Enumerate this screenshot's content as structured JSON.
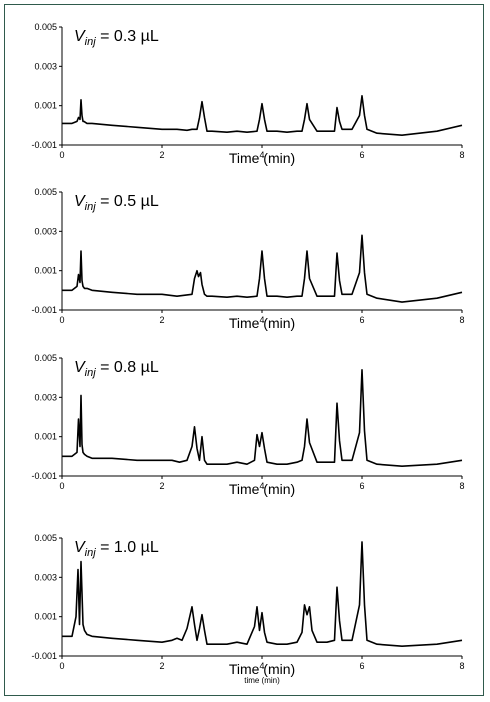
{
  "chart_data": [
    {
      "type": "line",
      "title": "V_inj = 0.3 µL",
      "title_parts": {
        "symbol": "V",
        "subscript": "inj",
        "value": " = 0.3 µL"
      },
      "xlabel": "Time (min)",
      "xlim": [
        0,
        8
      ],
      "ylim": [
        -0.001,
        0.005
      ],
      "xticks": [
        "0",
        "2",
        "4",
        "6",
        "8"
      ],
      "yticks": [
        "-0.001",
        "0.001",
        "0.003",
        "0.005"
      ],
      "series": [
        {
          "color": "#000000",
          "x": [
            0,
            0.2,
            0.3,
            0.33,
            0.36,
            0.38,
            0.4,
            0.42,
            0.44,
            0.47,
            0.5,
            0.6,
            1.0,
            1.5,
            2.0,
            2.3,
            2.5,
            2.6,
            2.7,
            2.75,
            2.8,
            2.85,
            2.9,
            3.0,
            3.3,
            3.5,
            3.7,
            3.9,
            3.95,
            4.0,
            4.05,
            4.1,
            4.3,
            4.5,
            4.7,
            4.8,
            4.85,
            4.9,
            4.95,
            5.1,
            5.3,
            5.45,
            5.5,
            5.55,
            5.6,
            5.8,
            5.95,
            6.0,
            6.05,
            6.1,
            6.3,
            6.8,
            7.5,
            8.0
          ],
          "y": [
            0.0001,
            0.0001,
            0.0002,
            0.0004,
            0.0003,
            0.0013,
            0.0005,
            0.0002,
            0.0002,
            0.00015,
            0.0001,
            0.0001,
            0.0,
            -0.0001,
            -0.0002,
            -0.0002,
            -0.00025,
            -0.0002,
            -0.0002,
            0.0004,
            0.0012,
            0.0004,
            -0.0003,
            -0.0003,
            -0.00035,
            -0.0003,
            -0.00035,
            -0.0003,
            0.0003,
            0.0011,
            0.0003,
            -0.0003,
            -0.0003,
            -0.00035,
            -0.0003,
            -0.0003,
            0.0003,
            0.0011,
            0.0003,
            -0.0003,
            -0.0003,
            -0.0003,
            0.0009,
            0.0002,
            -0.0002,
            -0.0002,
            0.0005,
            0.0015,
            0.0005,
            -0.0002,
            -0.0004,
            -0.0005,
            -0.0003,
            0.0
          ]
        }
      ]
    },
    {
      "type": "line",
      "title": "V_inj = 0.5 µL",
      "title_parts": {
        "symbol": "V",
        "subscript": "inj",
        "value": " = 0.5 µL"
      },
      "xlabel": "Time (min)",
      "xlim": [
        0,
        8
      ],
      "ylim": [
        -0.001,
        0.005
      ],
      "xticks": [
        "0",
        "2",
        "4",
        "6",
        "8"
      ],
      "yticks": [
        "-0.001",
        "0.001",
        "0.003",
        "0.005"
      ],
      "series": [
        {
          "color": "#000000",
          "x": [
            0,
            0.2,
            0.3,
            0.33,
            0.36,
            0.38,
            0.4,
            0.42,
            0.45,
            0.5,
            0.6,
            1.0,
            1.5,
            2.0,
            2.3,
            2.6,
            2.65,
            2.7,
            2.73,
            2.77,
            2.8,
            2.85,
            2.9,
            3.0,
            3.3,
            3.5,
            3.7,
            3.9,
            3.95,
            4.0,
            4.05,
            4.1,
            4.3,
            4.5,
            4.7,
            4.8,
            4.85,
            4.9,
            4.95,
            5.1,
            5.3,
            5.45,
            5.5,
            5.55,
            5.6,
            5.8,
            5.95,
            6.0,
            6.05,
            6.1,
            6.3,
            6.8,
            7.5,
            8.0
          ],
          "y": [
            0.0,
            0.0,
            0.0002,
            0.0008,
            0.0004,
            0.002,
            0.0005,
            0.0002,
            0.0001,
            0.0001,
            0.0,
            -0.0001,
            -0.0002,
            -0.0002,
            -0.0003,
            -0.0002,
            0.0006,
            0.001,
            0.0007,
            0.0009,
            0.0003,
            -0.0002,
            -0.0003,
            -0.0003,
            -0.00035,
            -0.0003,
            -0.00035,
            -0.0003,
            0.0006,
            0.002,
            0.0006,
            -0.0003,
            -0.0003,
            -0.00035,
            -0.0003,
            -0.0003,
            0.0006,
            0.002,
            0.0006,
            -0.0003,
            -0.0003,
            -0.0003,
            0.0019,
            0.0005,
            -0.0002,
            -0.0002,
            0.0009,
            0.0028,
            0.0009,
            -0.0002,
            -0.0004,
            -0.0006,
            -0.0004,
            -0.0001
          ]
        }
      ]
    },
    {
      "type": "line",
      "title": "V_inj = 0.8 µL",
      "title_parts": {
        "symbol": "V",
        "subscript": "inj",
        "value": " = 0.8 µL"
      },
      "xlabel": "Time (min)",
      "xlim": [
        0,
        8
      ],
      "ylim": [
        -0.001,
        0.005
      ],
      "xticks": [
        "0",
        "2",
        "4",
        "6",
        "8"
      ],
      "yticks": [
        "-0.001",
        "0.001",
        "0.003",
        "0.005"
      ],
      "series": [
        {
          "color": "#000000",
          "x": [
            0,
            0.2,
            0.3,
            0.33,
            0.36,
            0.38,
            0.4,
            0.42,
            0.45,
            0.5,
            0.6,
            1.0,
            1.5,
            2.0,
            2.2,
            2.35,
            2.5,
            2.6,
            2.65,
            2.7,
            2.75,
            2.8,
            2.85,
            2.9,
            3.0,
            3.3,
            3.5,
            3.7,
            3.85,
            3.9,
            3.95,
            4.0,
            4.05,
            4.1,
            4.3,
            4.5,
            4.7,
            4.8,
            4.85,
            4.9,
            4.95,
            5.1,
            5.3,
            5.45,
            5.5,
            5.55,
            5.6,
            5.8,
            5.95,
            6.0,
            6.05,
            6.1,
            6.3,
            6.8,
            7.5,
            8.0
          ],
          "y": [
            0.0,
            0.0,
            0.0002,
            0.0019,
            0.0005,
            0.0031,
            0.0006,
            0.0002,
            0.0001,
            0.0,
            -0.0001,
            -0.0001,
            -0.0002,
            -0.0002,
            -0.0002,
            -0.0003,
            -0.0002,
            0.0005,
            0.0015,
            0.0004,
            -0.0002,
            0.001,
            -0.0002,
            -0.0004,
            -0.0004,
            -0.0004,
            -0.0003,
            -0.0004,
            -0.0002,
            0.0011,
            0.0005,
            0.0012,
            0.0004,
            -0.0003,
            -0.0004,
            -0.0004,
            -0.0003,
            -0.0002,
            0.0005,
            0.0019,
            0.0007,
            -0.0003,
            -0.0003,
            -0.0003,
            0.0027,
            0.0008,
            -0.0002,
            -0.0002,
            0.0012,
            0.0044,
            0.0013,
            -0.0002,
            -0.0004,
            -0.0005,
            -0.0004,
            -0.0002
          ]
        }
      ]
    },
    {
      "type": "line",
      "title": "V_inj = 1.0 µL",
      "title_parts": {
        "symbol": "V",
        "subscript": "inj",
        "value": " = 1.0 µL"
      },
      "xlabel": "Time (min)",
      "xlim": [
        0,
        8
      ],
      "ylim": [
        -0.001,
        0.005
      ],
      "xticks": [
        "0",
        "2",
        "4",
        "6",
        "8"
      ],
      "yticks": [
        "-0.001",
        "0.001",
        "0.003",
        "0.005"
      ],
      "footer_label": "time (min)",
      "series": [
        {
          "color": "#000000",
          "x": [
            0,
            0.2,
            0.28,
            0.32,
            0.35,
            0.38,
            0.42,
            0.45,
            0.5,
            0.6,
            1.0,
            1.5,
            2.0,
            2.2,
            2.3,
            2.4,
            2.5,
            2.6,
            2.65,
            2.7,
            2.75,
            2.8,
            2.85,
            2.9,
            3.0,
            3.3,
            3.5,
            3.7,
            3.85,
            3.9,
            3.95,
            4.0,
            4.05,
            4.1,
            4.3,
            4.5,
            4.7,
            4.8,
            4.85,
            4.9,
            4.95,
            5.0,
            5.1,
            5.3,
            5.45,
            5.5,
            5.55,
            5.6,
            5.8,
            5.95,
            6.0,
            6.05,
            6.1,
            6.3,
            6.8,
            7.5,
            8.0
          ],
          "y": [
            0.0,
            0.0,
            0.001,
            0.0034,
            0.0006,
            0.0038,
            0.0006,
            0.0003,
            0.0001,
            0.0,
            -0.0001,
            -0.0002,
            -0.0003,
            -0.0002,
            -0.0001,
            -0.0002,
            0.0004,
            0.0015,
            0.0006,
            -0.0002,
            0.0004,
            0.0011,
            0.0003,
            -0.0004,
            -0.0004,
            -0.0004,
            -0.0003,
            -0.0004,
            0.0005,
            0.0015,
            0.0003,
            0.0012,
            0.0002,
            -0.0003,
            -0.0004,
            -0.0004,
            -0.0003,
            0.0002,
            0.0016,
            0.0011,
            0.0015,
            0.0003,
            -0.0003,
            -0.0003,
            -0.0002,
            0.0025,
            0.0008,
            -0.0002,
            -0.0002,
            0.0016,
            0.0048,
            0.0016,
            -0.0002,
            -0.0004,
            -0.0005,
            -0.0004,
            -0.0002
          ]
        }
      ]
    }
  ]
}
